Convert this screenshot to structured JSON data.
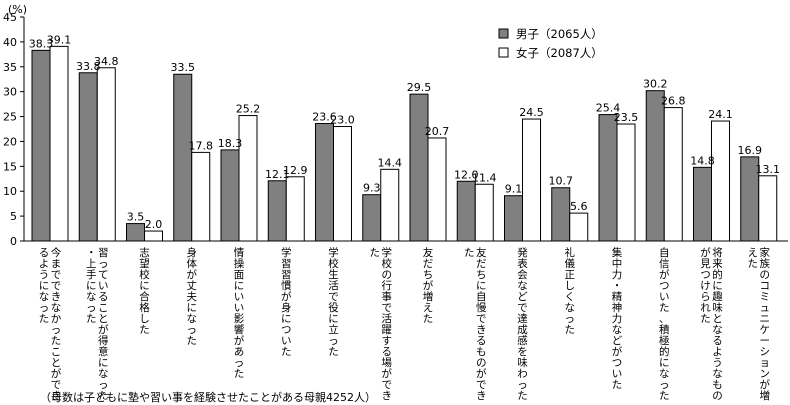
{
  "chart_data": {
    "type": "bar",
    "ylabel": "(%)",
    "ylim": [
      0,
      45
    ],
    "yticks": [
      0,
      5,
      10,
      15,
      20,
      25,
      30,
      35,
      40,
      45
    ],
    "legend_position": "top-right",
    "categories": [
      "今までできなかったことができるようになった",
      "習っていることが得意になった・上手になった",
      "志望校に合格した",
      "身体が丈夫になった",
      "情操面にいい影響があった",
      "学習習慣が身についた",
      "学校生活で役に立った",
      "学校の行事で活躍する場ができた",
      "友だちが増えた",
      "友だちに自慢できるものができた",
      "発表会などで達成感を味わった",
      "礼儀正しくなった",
      "集中力・精神力などがついた",
      "自信がついた、積極的になった",
      "将来的に趣味となるようなものが見つけられた",
      "家族のコミュニケーションが増えた"
    ],
    "series": [
      {
        "name": "男子（2065人）",
        "color": "#808080",
        "values": [
          38.3,
          33.8,
          3.5,
          33.5,
          18.3,
          12.1,
          23.6,
          9.3,
          29.5,
          12.0,
          9.1,
          10.7,
          25.4,
          30.2,
          14.8,
          16.9
        ]
      },
      {
        "name": "女子（2087人）",
        "color": "#ffffff",
        "values": [
          39.1,
          34.8,
          2.0,
          17.8,
          25.2,
          12.9,
          23.0,
          14.4,
          20.7,
          11.4,
          24.5,
          5.6,
          23.5,
          26.8,
          24.1,
          13.1
        ]
      }
    ],
    "footnote": "（母数は子どもに塾や習い事を経験させたことがある母親4252人）"
  }
}
